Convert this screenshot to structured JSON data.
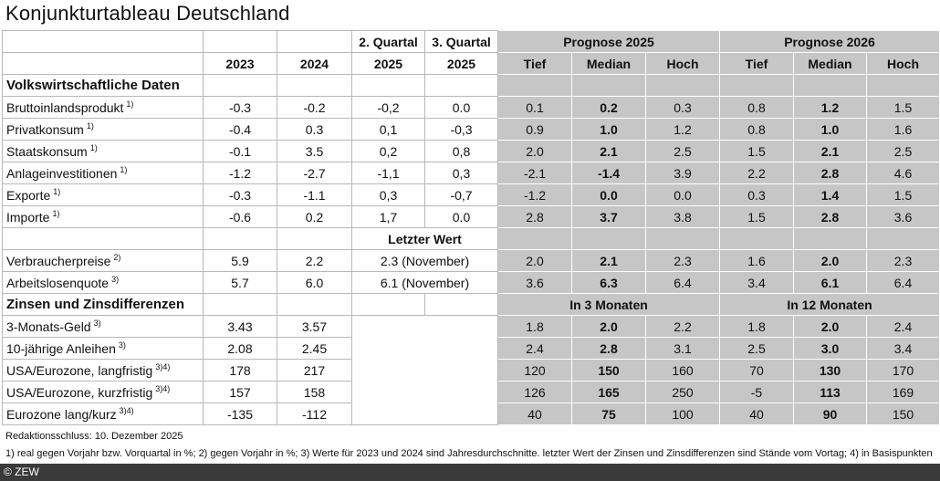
{
  "title": "Konjunkturtableau Deutschland",
  "header": {
    "quarters": [
      "2. Quartal",
      "3. Quartal"
    ],
    "years": [
      "2023",
      "2024",
      "2025",
      "2025"
    ],
    "forecast_groups": [
      "Prognose 2025",
      "Prognose 2026"
    ],
    "forecast_cols": [
      "Tief",
      "Median",
      "Hoch",
      "Tief",
      "Median",
      "Hoch"
    ]
  },
  "economy": {
    "title": "Volkswirtschaftliche Daten",
    "rows": [
      {
        "label": "Bruttoinlandsprodukt",
        "note": "1)",
        "values": [
          "-0.3",
          "-0.2",
          "-0,2",
          "0.0",
          "0.1",
          "0.2",
          "0.3",
          "0.8",
          "1.2",
          "1.5"
        ]
      },
      {
        "label": "Privatkonsum",
        "note": "1)",
        "values": [
          "-0.4",
          "0.3",
          "0,1",
          "-0,3",
          "0.9",
          "1.0",
          "1.2",
          "0.8",
          "1.0",
          "1.6"
        ]
      },
      {
        "label": "Staatskonsum",
        "note": "1)",
        "values": [
          "-0.1",
          "3.5",
          "0,2",
          "0,8",
          "2.0",
          "2.1",
          "2.5",
          "1.5",
          "2.1",
          "2.5"
        ]
      },
      {
        "label": "Anlageinvestitionen",
        "note": "1)",
        "values": [
          "-1.2",
          "-2.7",
          "-1,1",
          "0,3",
          "-2.1",
          "-1.4",
          "3.9",
          "2.2",
          "2.8",
          "4.6"
        ]
      },
      {
        "label": "Exporte",
        "note": "1)",
        "values": [
          "-0.3",
          "-1.1",
          "0,3",
          "-0,7",
          "-1.2",
          "0.0",
          "0.0",
          "0.3",
          "1.4",
          "1.5"
        ]
      },
      {
        "label": "Importe",
        "note": "1)",
        "values": [
          "-0.6",
          "0.2",
          "1,7",
          "0.0",
          "2.8",
          "3.7",
          "3.8",
          "1.5",
          "2.8",
          "3.6"
        ]
      }
    ]
  },
  "latest": {
    "label": "Letzter Wert",
    "rows": [
      {
        "label": "Verbraucherpreise",
        "note": "2)",
        "values": [
          "5.9",
          "2.2",
          "2.3 (November)",
          "2.0",
          "2.1",
          "2.3",
          "1.6",
          "2.0",
          "2.3"
        ]
      },
      {
        "label": "Arbeitslosenquote",
        "note": "3)",
        "values": [
          "5.7",
          "6.0",
          "6.1 (November)",
          "3.6",
          "6.3",
          "6.4",
          "3.4",
          "6.1",
          "6.4"
        ]
      }
    ]
  },
  "rates": {
    "title": "Zinsen und Zinsdifferenzen",
    "groups": [
      "In 3 Monaten",
      "In 12 Monaten"
    ],
    "rows": [
      {
        "label": "3-Monats-Geld",
        "note": "3)",
        "values": [
          "3.43",
          "3.57",
          "1.8",
          "2.0",
          "2.2",
          "1.8",
          "2.0",
          "2.4"
        ]
      },
      {
        "label": "10-jährige Anleihen",
        "note": "3)",
        "values": [
          "2.08",
          "2.45",
          "2.4",
          "2.8",
          "3.1",
          "2.5",
          "3.0",
          "3.4"
        ]
      },
      {
        "label": "USA/Eurozone, langfristig",
        "note": "3)4)",
        "values": [
          "178",
          "217",
          "120",
          "150",
          "160",
          "70",
          "130",
          "170"
        ]
      },
      {
        "label": "USA/Eurozone, kurzfristig",
        "note": "3)4)",
        "values": [
          "157",
          "158",
          "126",
          "165",
          "250",
          "-5",
          "113",
          "169"
        ]
      },
      {
        "label": "Eurozone lang/kurz",
        "note": "3)4)",
        "values": [
          "-135",
          "-112",
          "40",
          "75",
          "100",
          "40",
          "90",
          "150"
        ]
      }
    ]
  },
  "footer": {
    "stand": "Redaktionsschluss: 10. Dezember 2025",
    "notes": "1) real gegen Vorjahr bzw. Vorquartal in %; 2) gegen Vorjahr in %; 3) Werte für 2023 und 2024 sind Jahresdurchschnitte. letzter Wert der Zinsen und Zinsdifferenzen sind Stände vom Vortag; 4) in Basispunkten",
    "copyright": "© ZEW"
  }
}
